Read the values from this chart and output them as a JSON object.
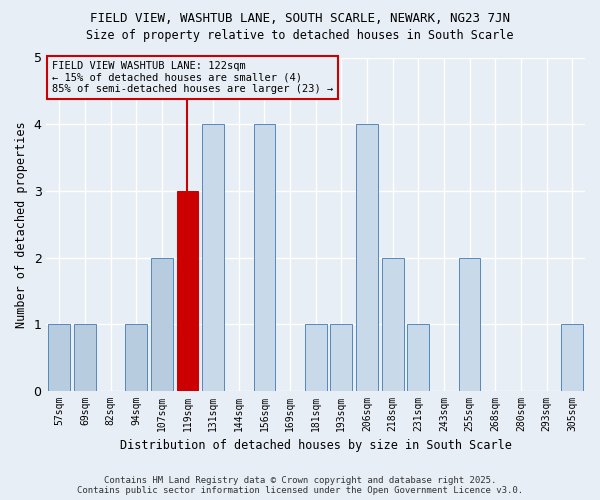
{
  "title": "FIELD VIEW, WASHTUB LANE, SOUTH SCARLE, NEWARK, NG23 7JN",
  "subtitle": "Size of property relative to detached houses in South Scarle",
  "xlabel": "Distribution of detached houses by size in South Scarle",
  "ylabel": "Number of detached properties",
  "categories": [
    "57sqm",
    "69sqm",
    "82sqm",
    "94sqm",
    "107sqm",
    "119sqm",
    "131sqm",
    "144sqm",
    "156sqm",
    "169sqm",
    "181sqm",
    "193sqm",
    "206sqm",
    "218sqm",
    "231sqm",
    "243sqm",
    "255sqm",
    "268sqm",
    "280sqm",
    "293sqm",
    "305sqm"
  ],
  "values": [
    1,
    1,
    0,
    1,
    2,
    3,
    4,
    0,
    4,
    0,
    1,
    1,
    4,
    2,
    1,
    0,
    2,
    0,
    0,
    0,
    1
  ],
  "highlight_index": 5,
  "highlight_color": "#cc0000",
  "bar_color_smaller": "#b8ccdf",
  "bar_color_larger": "#c8daea",
  "bar_edge_color": "#5588bb",
  "ylim": [
    0,
    5
  ],
  "yticks": [
    0,
    1,
    2,
    3,
    4,
    5
  ],
  "annotation_title": "FIELD VIEW WASHTUB LANE: 122sqm",
  "annotation_line2": "← 15% of detached houses are smaller (4)",
  "annotation_line3": "85% of semi-detached houses are larger (23) →",
  "footer1": "Contains HM Land Registry data © Crown copyright and database right 2025.",
  "footer2": "Contains public sector information licensed under the Open Government Licence v3.0.",
  "bg_color": "#e8eef5"
}
